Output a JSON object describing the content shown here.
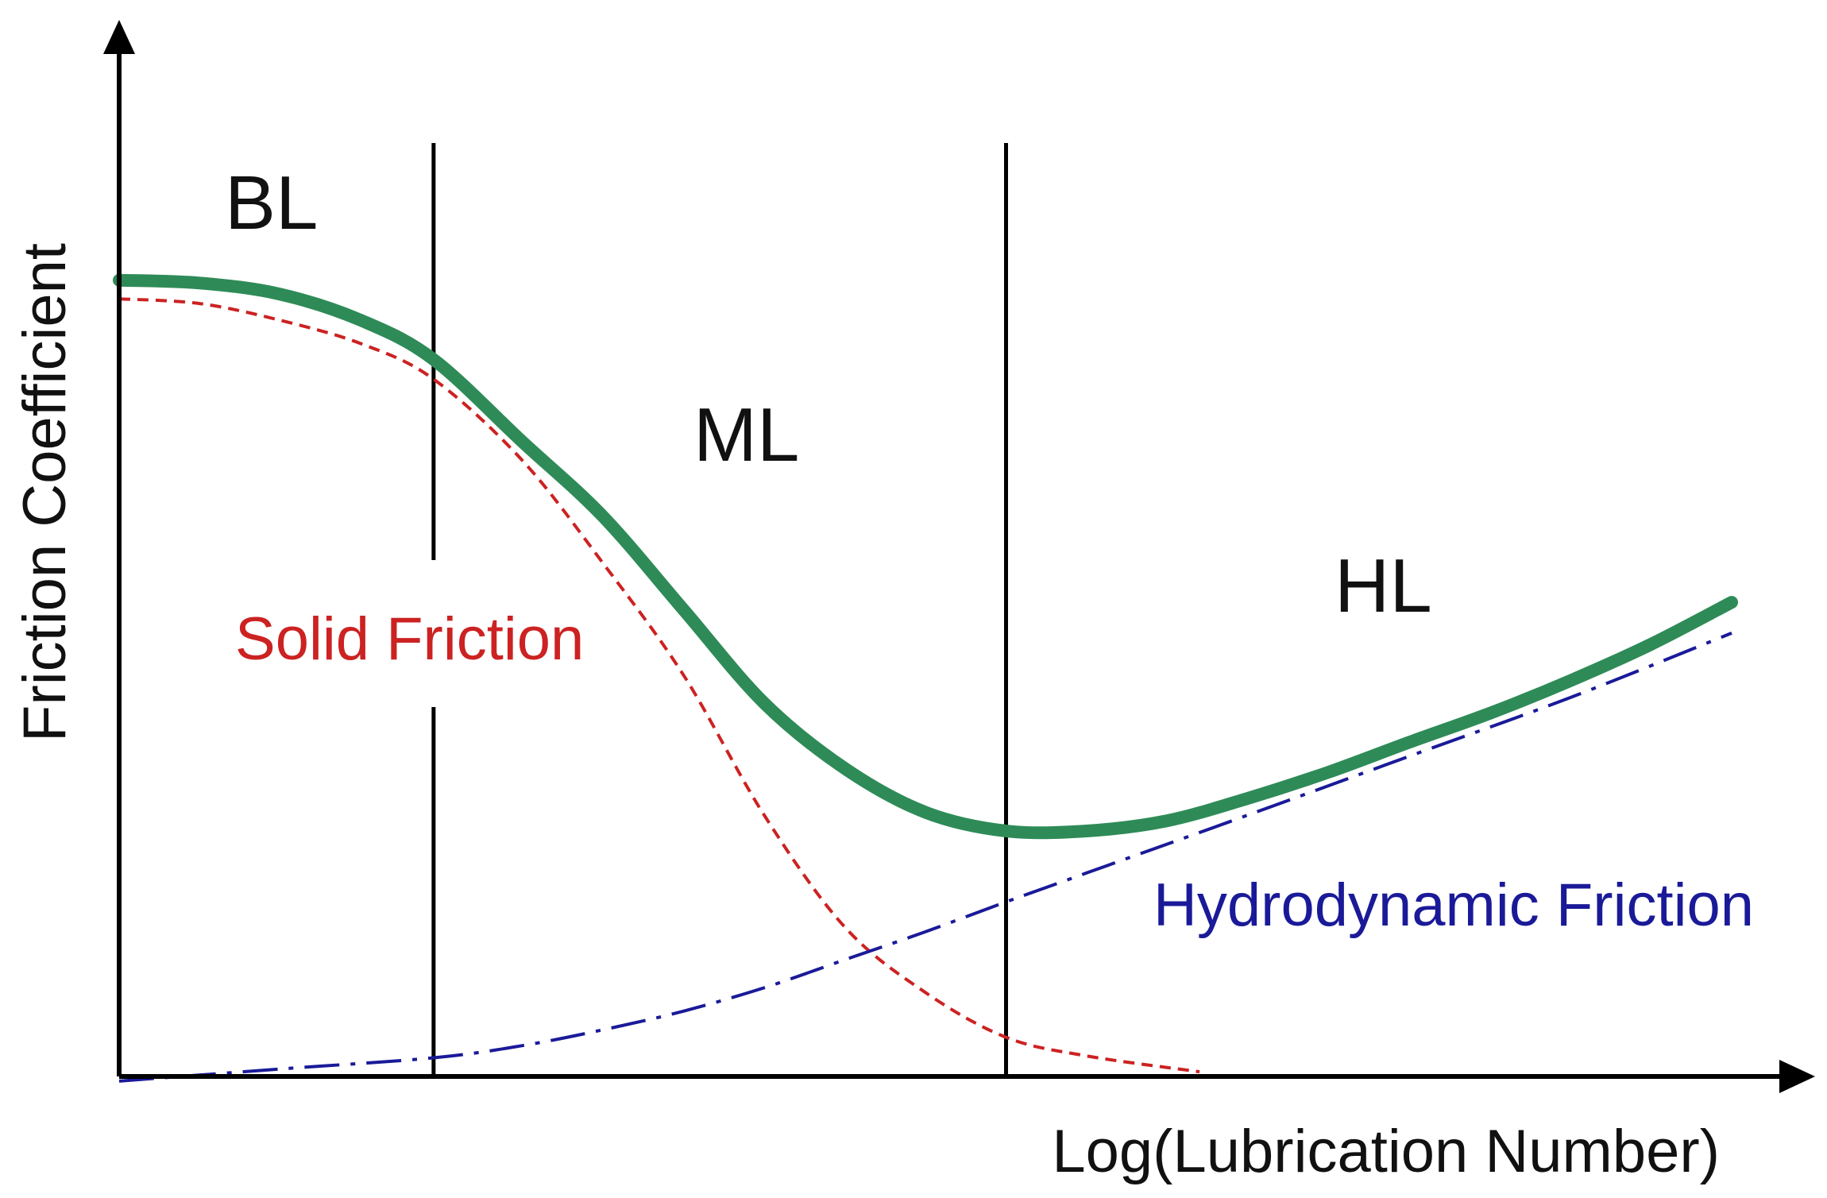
{
  "chart_data": {
    "type": "line",
    "title": "",
    "xlabel": "Log(Lubrication Number)",
    "ylabel": "Friction Coefficient",
    "xlim": [
      0,
      100
    ],
    "ylim": [
      0,
      100
    ],
    "x_ticks": [],
    "y_ticks": [],
    "grid": false,
    "legend": "none",
    "regions": [
      {
        "label": "BL",
        "x": 9.5,
        "y": 92
      },
      {
        "label": "ML",
        "x": 39,
        "y": 70
      },
      {
        "label": "HL",
        "x": 80,
        "y": 53
      }
    ],
    "boundaries": [
      {
        "x": 19.5,
        "y_top": 100
      },
      {
        "x": 55,
        "y_top": 100
      }
    ],
    "series": [
      {
        "name": "",
        "style": "solid",
        "color": "#2e8b57",
        "x": [
          0,
          5,
          10,
          15,
          19.5,
          25,
          30,
          35,
          40,
          45,
          50,
          55,
          60,
          65,
          70,
          75,
          80,
          85,
          90,
          95,
          100
        ],
        "y": [
          85.3,
          85.0,
          83.8,
          81.0,
          76.8,
          68.0,
          60.0,
          50.0,
          40.0,
          33.0,
          28.3,
          26.3,
          26.3,
          27.4,
          29.8,
          32.6,
          35.8,
          38.9,
          42.4,
          46.3,
          50.8
        ]
      },
      {
        "name": "Solid Friction",
        "style": "dashed",
        "color": "#cc2222",
        "x": [
          0,
          5,
          10,
          15,
          19.5,
          25,
          30,
          35,
          40,
          45,
          50,
          55,
          60,
          67
        ],
        "y": [
          83.3,
          82.8,
          81.0,
          78.5,
          74.7,
          66.0,
          55.0,
          43.0,
          28.0,
          16.0,
          9.0,
          4.2,
          2.2,
          0.5
        ]
      },
      {
        "name": "Hydrodynamic Friction",
        "style": "dashdot",
        "color": "#1a1a99",
        "x": [
          0,
          10,
          19.5,
          25,
          30,
          35,
          40,
          45,
          50,
          55,
          60,
          70,
          80,
          90,
          100
        ],
        "y": [
          -0.5,
          0.8,
          2.0,
          3.3,
          5.0,
          7.0,
          9.5,
          12.5,
          15.5,
          18.7,
          21.8,
          28.0,
          34.3,
          40.6,
          47.5
        ]
      }
    ]
  },
  "colors": {
    "main_curve": "#2e8b57",
    "solid_friction": "#cc2222",
    "hydrodynamic_friction": "#1a1a99",
    "axes": "#000000",
    "text": "#111111"
  }
}
